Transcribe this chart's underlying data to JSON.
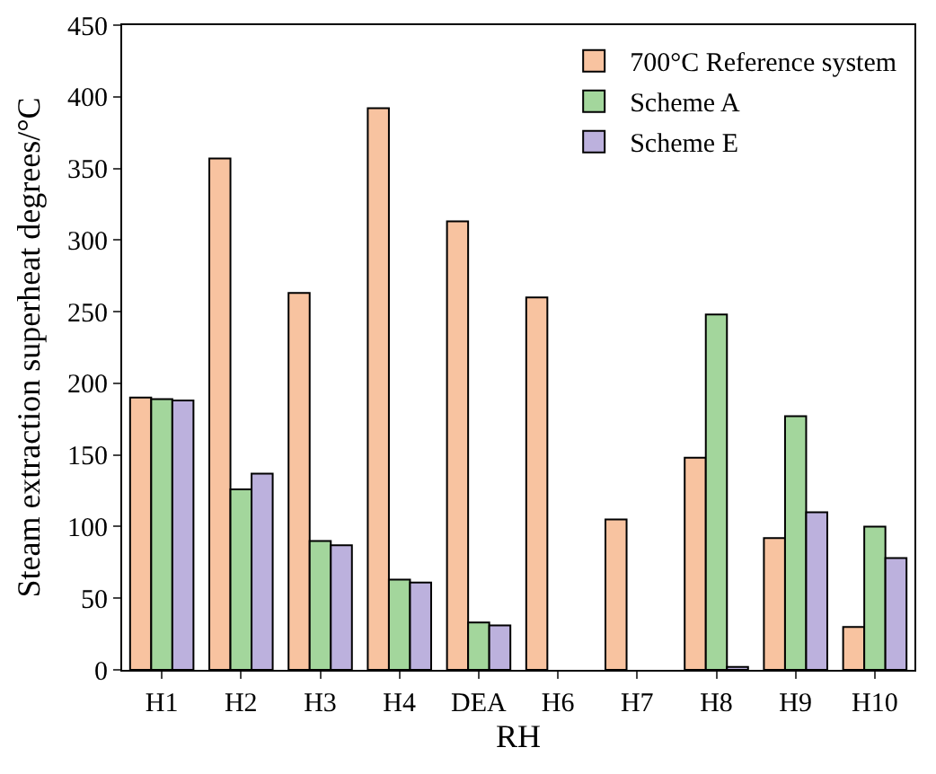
{
  "chart_data": {
    "type": "bar",
    "xlabel": "RH",
    "ylabel": "Steam extraction superheat degrees/°C",
    "categories": [
      "H1",
      "H2",
      "H3",
      "H4",
      "DEA",
      "H6",
      "H7",
      "H8",
      "H9",
      "H10"
    ],
    "series": [
      {
        "name": "700°C Reference system",
        "color": "#f8c3a0",
        "values": [
          190,
          357,
          263,
          392,
          313,
          260,
          105,
          148,
          92,
          30
        ]
      },
      {
        "name": "Scheme A",
        "color": "#a3d69c",
        "values": [
          189,
          126,
          90,
          63,
          33,
          null,
          null,
          248,
          177,
          100
        ]
      },
      {
        "name": "Scheme E",
        "color": "#bcb1dd",
        "values": [
          188,
          137,
          87,
          61,
          31,
          null,
          null,
          2,
          110,
          78
        ]
      }
    ],
    "ylim": [
      0,
      450
    ],
    "yticks": [
      0,
      50,
      100,
      150,
      200,
      250,
      300,
      350,
      400,
      450
    ],
    "grid": false,
    "legend": "top right"
  }
}
